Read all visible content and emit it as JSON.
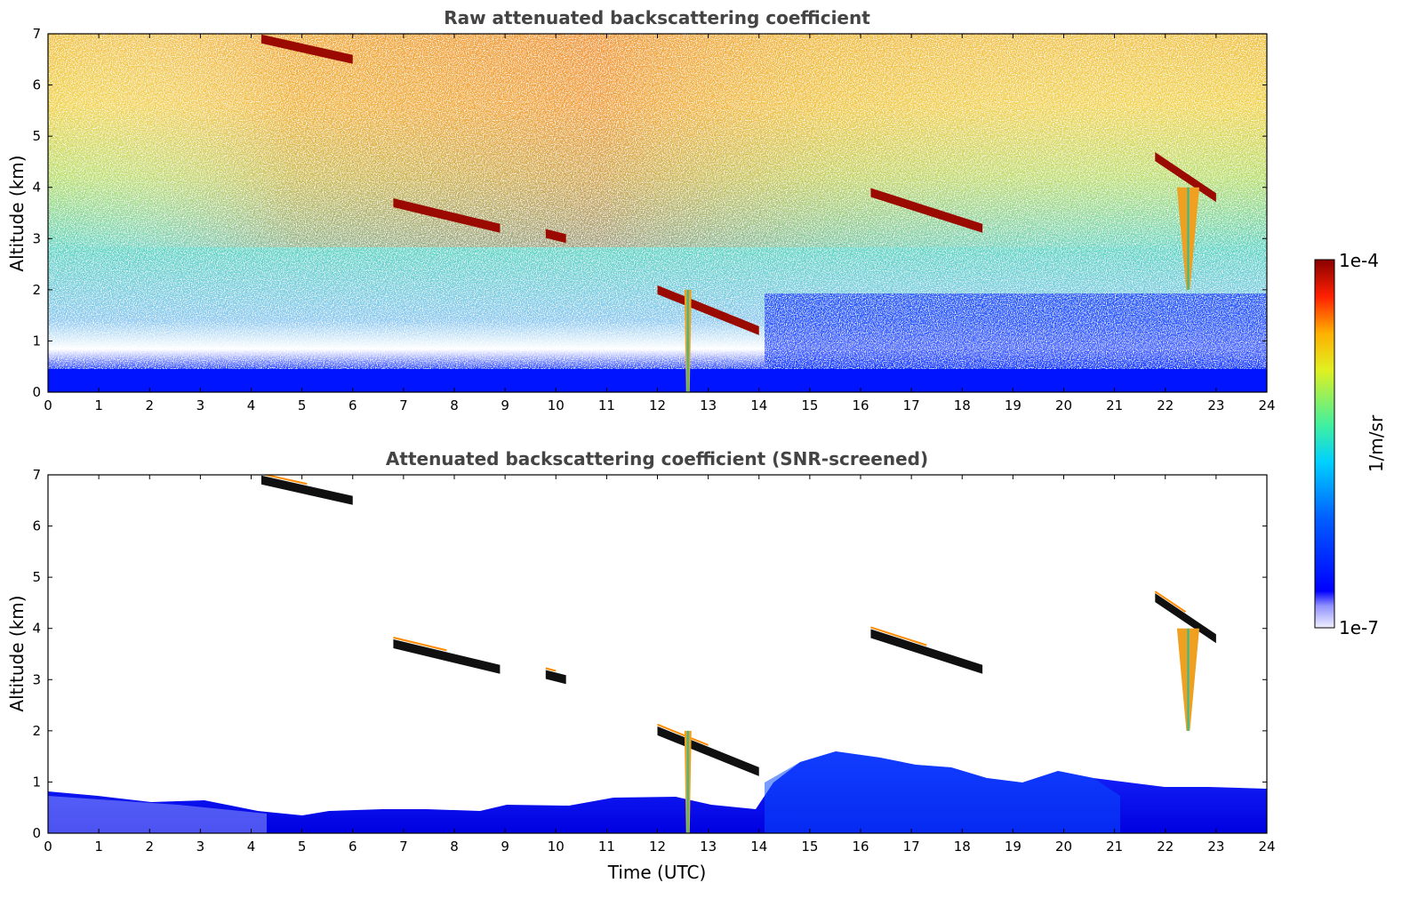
{
  "chart_data": [
    {
      "type": "heatmap",
      "title": "Raw attenuated backscattering coefficient",
      "xlabel": "",
      "ylabel": "Altitude (km)",
      "xlim": [
        0,
        24
      ],
      "ylim": [
        0,
        7
      ],
      "xticks": [
        "0",
        "1",
        "2",
        "3",
        "4",
        "5",
        "6",
        "7",
        "8",
        "9",
        "10",
        "11",
        "12",
        "13",
        "14",
        "15",
        "16",
        "17",
        "18",
        "19",
        "20",
        "21",
        "22",
        "23",
        "24"
      ],
      "yticks": [
        "0",
        "1",
        "2",
        "3",
        "4",
        "5",
        "6",
        "7"
      ],
      "features": [
        {
          "kind": "cloud",
          "t": [
            4.2,
            6.0
          ],
          "alt": [
            6.9,
            6.5
          ]
        },
        {
          "kind": "cloud",
          "t": [
            6.8,
            8.9
          ],
          "alt": [
            3.7,
            3.2
          ]
        },
        {
          "kind": "cloud",
          "t": [
            9.8,
            10.2
          ],
          "alt": [
            3.1,
            3.0
          ]
        },
        {
          "kind": "cloud",
          "t": [
            12.0,
            14.0
          ],
          "alt": [
            2.0,
            1.2
          ]
        },
        {
          "kind": "cloud",
          "t": [
            16.2,
            18.4
          ],
          "alt": [
            3.9,
            3.2
          ]
        },
        {
          "kind": "cloud",
          "t": [
            21.8,
            23.0
          ],
          "alt": [
            4.6,
            3.8
          ]
        },
        {
          "kind": "precipitation",
          "t": [
            12.6,
            12.6
          ],
          "alt": [
            2.0,
            0.0
          ]
        },
        {
          "kind": "precipitation",
          "t": [
            22.3,
            22.6
          ],
          "alt": [
            4.0,
            2.0
          ]
        },
        {
          "kind": "boundary-layer",
          "t": [
            0.0,
            24.0
          ],
          "alt": [
            0.0,
            0.6
          ]
        }
      ]
    },
    {
      "type": "heatmap",
      "title": "Attenuated backscattering coefficient (SNR-screened)",
      "xlabel": "Time (UTC)",
      "ylabel": "Altitude (km)",
      "xlim": [
        0,
        24
      ],
      "ylim": [
        0,
        7
      ],
      "xticks": [
        "0",
        "1",
        "2",
        "3",
        "4",
        "5",
        "6",
        "7",
        "8",
        "9",
        "10",
        "11",
        "12",
        "13",
        "14",
        "15",
        "16",
        "17",
        "18",
        "19",
        "20",
        "21",
        "22",
        "23",
        "24"
      ],
      "yticks": [
        "0",
        "1",
        "2",
        "3",
        "4",
        "5",
        "6",
        "7"
      ]
    }
  ],
  "colorbar": {
    "label": "1/m/sr",
    "max_label": "1e-4",
    "min_label": "1e-7",
    "scale": "log",
    "colormap": "jet"
  }
}
